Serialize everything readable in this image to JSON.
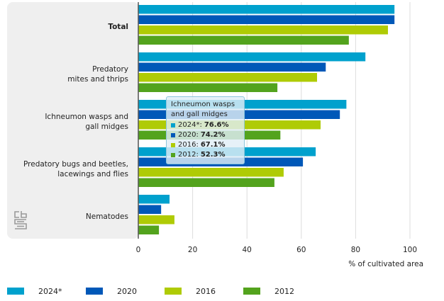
{
  "chart_data": {
    "type": "bar",
    "orientation": "horizontal",
    "title": "",
    "xlabel": "% of cultivated area",
    "ylabel": "",
    "xlim": [
      0,
      100
    ],
    "x_ticks": [
      "0",
      "20",
      "40",
      "60",
      "80",
      "100"
    ],
    "x_tick_values": [
      0,
      20,
      40,
      60,
      80,
      100
    ],
    "grid": true,
    "legend_position": "bottom",
    "categories": [
      {
        "lines": [
          "Total"
        ],
        "bold": true
      },
      {
        "lines": [
          "Predatory",
          "mites and thrips"
        ],
        "bold": false
      },
      {
        "lines": [
          "Ichneumon wasps and",
          "gall midges"
        ],
        "bold": false
      },
      {
        "lines": [
          "Predatory bugs and beetles,",
          "lacewings and flies"
        ],
        "bold": false
      },
      {
        "lines": [
          "Nematodes"
        ],
        "bold": false
      }
    ],
    "series": [
      {
        "name": "2024*",
        "color": "#00a1cd",
        "values": [
          94.3,
          83.6,
          76.6,
          65.3,
          11.5
        ]
      },
      {
        "name": "2020",
        "color": "#0058b8",
        "values": [
          94.3,
          69.0,
          74.2,
          60.6,
          8.4
        ]
      },
      {
        "name": "2016",
        "color": "#afcb05",
        "values": [
          91.9,
          65.8,
          67.1,
          53.5,
          13.3
        ]
      },
      {
        "name": "2012",
        "color": "#53a31d",
        "values": [
          77.5,
          51.2,
          52.3,
          50.1,
          7.6
        ]
      }
    ]
  },
  "tooltip": {
    "title": "Ichneumon wasps and gall midges",
    "rows": [
      {
        "label": "2024*:",
        "value": "76.6%",
        "color": "#00a1cd"
      },
      {
        "label": "2020:",
        "value": "74.2%",
        "color": "#0058b8"
      },
      {
        "label": "2016:",
        "value": "67.1%",
        "color": "#afcb05"
      },
      {
        "label": "2012:",
        "value": "52.3%",
        "color": "#53a31d"
      }
    ]
  },
  "colors": {
    "panel_bg": "#efefef",
    "grid": "#d9d9d9",
    "axis": "#555555",
    "logo": "#9a9a9a"
  }
}
